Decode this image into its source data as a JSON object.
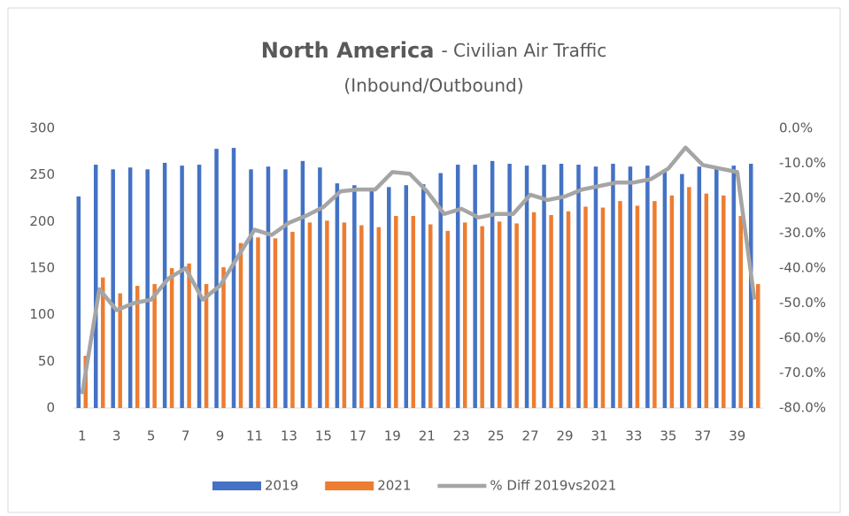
{
  "chart_data": {
    "type": "bar_line",
    "title": "North America",
    "title_rest": "- Civilian Air Traffic",
    "subtitle": "(Inbound/Outbound)",
    "categories": [
      1,
      null,
      3,
      null,
      5,
      null,
      7,
      null,
      9,
      null,
      11,
      null,
      13,
      null,
      15,
      null,
      17,
      null,
      19,
      null,
      21,
      null,
      23,
      null,
      25,
      null,
      27,
      null,
      29,
      null,
      31,
      null,
      33,
      null,
      35,
      null,
      37,
      null,
      39,
      null
    ],
    "series": [
      {
        "name": "2019",
        "color": "#4472c4",
        "type": "bar",
        "values": [
          227,
          261,
          256,
          258,
          256,
          263,
          260,
          261,
          278,
          279,
          256,
          259,
          256,
          265,
          258,
          241,
          239,
          236,
          237,
          239,
          240,
          252,
          261,
          261,
          265,
          262,
          260,
          261,
          262,
          261,
          259,
          262,
          259,
          260,
          256,
          251,
          259,
          256,
          260,
          262
        ]
      },
      {
        "name": "2021",
        "color": "#ed7d31",
        "type": "bar",
        "values": [
          56,
          140,
          123,
          131,
          133,
          150,
          155,
          133,
          151,
          177,
          183,
          182,
          189,
          199,
          201,
          199,
          196,
          194,
          206,
          206,
          197,
          190,
          199,
          195,
          200,
          198,
          210,
          207,
          211,
          216,
          215,
          222,
          217,
          222,
          228,
          237,
          230,
          228,
          206,
          133
        ]
      },
      {
        "name": "% Diff 2019vs2021",
        "color": "#a5a5a5",
        "type": "line",
        "axis": "y2",
        "values": [
          -76,
          -46,
          -52,
          -50,
          -49,
          -43,
          -40,
          -49,
          -45,
          -37,
          -29,
          -30.5,
          -27,
          -25,
          -22.5,
          -18,
          -17.5,
          -17.5,
          -12.5,
          -13,
          -18,
          -24.5,
          -23,
          -25.5,
          -24.5,
          -24.5,
          -19,
          -20.5,
          -19.5,
          -17.5,
          -16.5,
          -15.5,
          -15.5,
          -14.5,
          -11.5,
          -5.5,
          -10.5,
          -11.5,
          -12.5,
          -49
        ]
      }
    ],
    "ylim": [
      0,
      300
    ],
    "yticks": [
      0,
      50,
      100,
      150,
      200,
      250,
      300
    ],
    "y2lim": [
      -80,
      0
    ],
    "y2ticks": [
      {
        "value": 0,
        "label": "0.0%"
      },
      {
        "value": -10,
        "label": "-10.0%"
      },
      {
        "value": -20,
        "label": "-20.0%"
      },
      {
        "value": -30,
        "label": "-30.0%"
      },
      {
        "value": -40,
        "label": "-40.0%"
      },
      {
        "value": -50,
        "label": "-50.0%"
      },
      {
        "value": -60,
        "label": "-60.0%"
      },
      {
        "value": -70,
        "label": "-70.0%"
      },
      {
        "value": -80,
        "label": "-80.0%"
      }
    ],
    "grid": false,
    "legend": "bottom"
  }
}
